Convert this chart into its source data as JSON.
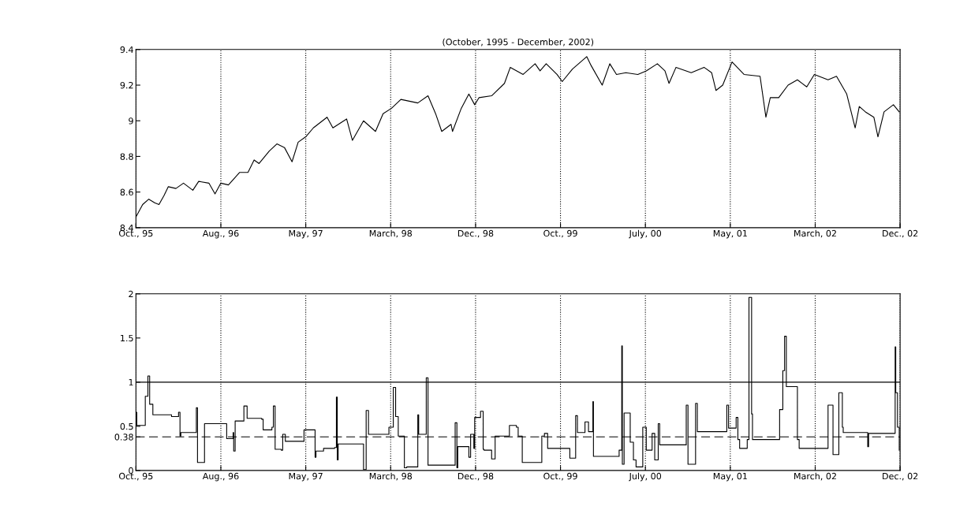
{
  "chart_data": [
    {
      "type": "line",
      "title": "(October, 1995 - December, 2002)",
      "xlim": [
        "1995-10-16",
        "2002-12-17"
      ],
      "ylim": [
        8.4,
        9.4
      ],
      "xticks": [
        {
          "value": "1995-10-16",
          "label": "Oct., 95"
        },
        {
          "value": "1996-08-02",
          "label": "Aug., 96"
        },
        {
          "value": "1997-05-20",
          "label": "May, 97"
        },
        {
          "value": "1998-03-07",
          "label": "March, 98"
        },
        {
          "value": "1998-12-23",
          "label": "Dec., 98"
        },
        {
          "value": "1999-10-10",
          "label": "Oct., 99"
        },
        {
          "value": "2000-07-27",
          "label": "July, 00"
        },
        {
          "value": "2001-05-14",
          "label": "May, 01"
        },
        {
          "value": "2002-03-01",
          "label": "March, 02"
        },
        {
          "value": "2002-12-17",
          "label": "Dec., 02"
        }
      ],
      "yticks": [
        8.4,
        8.6,
        8.8,
        9,
        9.2,
        9.4
      ],
      "grid": "x",
      "series": [
        {
          "color": "#000000",
          "x": [
            "1995-10-16",
            "1995-11-08",
            "1995-11-29",
            "1995-12-19",
            "1996-01-03",
            "1996-01-20",
            "1996-02-04",
            "1996-03-01",
            "1996-03-27",
            "1996-04-28",
            "1996-05-18",
            "1996-06-22",
            "1996-07-13",
            "1996-08-02",
            "1996-08-28",
            "1996-10-05",
            "1996-11-03",
            "1996-11-24",
            "1996-12-11",
            "1997-01-15",
            "1997-02-10",
            "1997-03-08",
            "1997-04-03",
            "1997-04-24",
            "1997-05-20",
            "1997-06-15",
            "1997-08-01",
            "1997-08-21",
            "1997-10-07",
            "1997-10-27",
            "1997-12-04",
            "1998-01-14",
            "1998-02-09",
            "1998-03-10",
            "1998-04-11",
            "1998-06-08",
            "1998-07-13",
            "1998-08-08",
            "1998-08-29",
            "1998-09-30",
            "1998-10-05",
            "1998-11-04",
            "1998-11-30",
            "1998-12-20",
            "1999-01-04",
            "1999-02-16",
            "1999-04-01",
            "1999-04-21",
            "1999-06-04",
            "1999-07-15",
            "1999-08-01",
            "1999-08-22",
            "1999-09-28",
            "1999-10-16",
            "1999-11-20",
            "2000-01-08",
            "2000-01-23",
            "2000-03-01",
            "2000-03-27",
            "2000-04-19",
            "2000-05-21",
            "2000-07-01",
            "2000-07-30",
            "2000-09-06",
            "2000-10-02",
            "2000-10-16",
            "2000-11-09",
            "2000-12-31",
            "2001-02-13",
            "2001-03-11",
            "2001-03-26",
            "2001-04-18",
            "2001-05-20",
            "2001-06-30",
            "2001-08-24",
            "2001-09-13",
            "2001-09-28",
            "2001-10-27",
            "2001-11-28",
            "2001-12-30",
            "2002-01-31",
            "2002-02-26",
            "2002-04-14",
            "2002-05-13",
            "2002-06-17",
            "2002-07-16",
            "2002-07-30",
            "2002-08-20",
            "2002-09-18",
            "2002-10-02",
            "2002-10-23",
            "2002-11-24",
            "2002-12-14"
          ],
          "values": [
            8.46,
            8.53,
            8.56,
            8.54,
            8.53,
            8.58,
            8.63,
            8.62,
            8.65,
            8.61,
            8.66,
            8.65,
            8.59,
            8.65,
            8.64,
            8.71,
            8.71,
            8.78,
            8.76,
            8.83,
            8.87,
            8.85,
            8.77,
            8.88,
            8.91,
            8.96,
            9.02,
            8.96,
            9.01,
            8.89,
            9.0,
            8.94,
            9.04,
            9.07,
            9.12,
            9.1,
            9.14,
            9.04,
            8.94,
            8.98,
            8.94,
            9.07,
            9.15,
            9.09,
            9.13,
            9.14,
            9.21,
            9.3,
            9.26,
            9.32,
            9.28,
            9.32,
            9.26,
            9.22,
            9.29,
            9.36,
            9.31,
            9.2,
            9.32,
            9.26,
            9.27,
            9.26,
            9.28,
            9.32,
            9.28,
            9.21,
            9.3,
            9.27,
            9.3,
            9.27,
            9.17,
            9.2,
            9.33,
            9.26,
            9.25,
            9.02,
            9.13,
            9.13,
            9.2,
            9.23,
            9.19,
            9.26,
            9.23,
            9.25,
            9.15,
            8.96,
            9.08,
            9.05,
            9.02,
            8.91,
            9.05,
            9.09,
            9.05
          ]
        }
      ]
    },
    {
      "type": "step",
      "xlim": [
        "1995-10-16",
        "2002-12-17"
      ],
      "ylim": [
        0,
        2
      ],
      "xticks": [
        {
          "value": "1995-10-16",
          "label": "Oct., 95"
        },
        {
          "value": "1996-08-02",
          "label": "Aug., 96"
        },
        {
          "value": "1997-05-20",
          "label": "May, 97"
        },
        {
          "value": "1998-03-07",
          "label": "March, 98"
        },
        {
          "value": "1998-12-23",
          "label": "Dec., 98"
        },
        {
          "value": "1999-10-10",
          "label": "Oct., 99"
        },
        {
          "value": "2000-07-27",
          "label": "July, 00"
        },
        {
          "value": "2001-05-14",
          "label": "May, 01"
        },
        {
          "value": "2002-03-01",
          "label": "March, 02"
        },
        {
          "value": "2002-12-17",
          "label": "Dec., 02"
        }
      ],
      "yticks": [
        0,
        0.38,
        0.5,
        1,
        1.5,
        2
      ],
      "grid": "x",
      "ref_lines": [
        {
          "axis": "y",
          "value": 1,
          "line_style": "solid",
          "color": "#000000"
        },
        {
          "axis": "y",
          "value": 0.38,
          "line_style": "dashed",
          "color": "#000000"
        }
      ],
      "series": [
        {
          "color": "#000000",
          "x": [
            "1995-10-16",
            "1995-10-19",
            "1995-11-14",
            "1995-11-17",
            "1995-11-26",
            "1995-12-02",
            "1995-12-13",
            "1996-02-15",
            "1996-03-10",
            "1996-03-15",
            "1996-03-18",
            "1996-05-09",
            "1996-05-10",
            "1996-05-14",
            "1996-06-04",
            "1996-06-07",
            "1996-08-19",
            "1996-08-22",
            "1996-09-13",
            "1996-09-15",
            "1996-09-20",
            "1996-10-20",
            "1996-10-31",
            "1996-12-20",
            "1996-12-25",
            "1997-01-24",
            "1997-01-29",
            "1997-02-04",
            "1997-02-25",
            "1997-03-02",
            "1997-03-11",
            "1997-05-05",
            "1997-05-14",
            "1997-06-04",
            "1997-06-21",
            "1997-06-24",
            "1997-07-20",
            "1997-08-27",
            "1997-09-02",
            "1997-09-05",
            "1997-09-08",
            "1997-11-28",
            "1997-12-04",
            "1997-12-13",
            "1997-12-21",
            "1998-02-20",
            "1998-03-01",
            "1998-03-16",
            "1998-03-24",
            "1998-04-02",
            "1998-04-17",
            "1998-04-23",
            "1998-05-01",
            "1998-06-02",
            "1998-06-08",
            "1998-06-11",
            "1998-07-04",
            "1998-07-07",
            "1998-07-13",
            "1998-10-08",
            "1998-10-14",
            "1998-10-20",
            "1998-10-23",
            "1998-11-09",
            "1998-11-30",
            "1998-12-06",
            "1998-12-17",
            "1998-12-20",
            "1999-01-09",
            "1999-01-18",
            "1999-01-21",
            "1999-02-16",
            "1999-02-28",
            "1999-04-15",
            "1999-04-18",
            "1999-05-12",
            "1999-05-18",
            "1999-06-01",
            "1999-07-26",
            "1999-08-07",
            "1999-08-16",
            "1999-08-27",
            "1999-10-30",
            "1999-11-11",
            "1999-11-26",
            "1999-12-01",
            "1999-12-07",
            "2000-01-02",
            "2000-01-14",
            "2000-01-29",
            "2000-01-31",
            "2000-04-28",
            "2000-05-07",
            "2000-05-09",
            "2000-05-15",
            "2000-06-05",
            "2000-06-16",
            "2000-06-25",
            "2000-07-18",
            "2000-07-30",
            "2000-08-19",
            "2000-08-28",
            "2000-09-09",
            "2000-09-14",
            "2000-11-23",
            "2000-12-14",
            "2000-12-20",
            "2001-01-15",
            "2001-01-21",
            "2001-04-27",
            "2001-05-02",
            "2001-05-08",
            "2001-06-03",
            "2001-06-09",
            "2001-06-15",
            "2001-07-11",
            "2001-07-17",
            "2001-07-26",
            "2001-07-29",
            "2001-10-27",
            "2001-10-30",
            "2001-11-10",
            "2001-11-16",
            "2001-11-22",
            "2001-12-18",
            "2001-12-30",
            "2002-01-05",
            "2002-04-05",
            "2002-04-14",
            "2002-05-01",
            "2002-05-21",
            "2002-06-02",
            "2002-06-05",
            "2002-08-26",
            "2002-08-28",
            "2002-08-31",
            "2002-11-15",
            "2002-11-30",
            "2002-12-02",
            "2002-12-08",
            "2002-12-14"
          ],
          "values": [
            0.66,
            0.51,
            0.51,
            0.84,
            1.07,
            0.75,
            0.63,
            0.61,
            0.66,
            0.39,
            0.43,
            0.43,
            0.71,
            0.09,
            0.09,
            0.53,
            0.53,
            0.36,
            0.43,
            0.22,
            0.56,
            0.73,
            0.59,
            0.58,
            0.46,
            0.49,
            0.73,
            0.24,
            0.23,
            0.41,
            0.33,
            0.33,
            0.46,
            0.46,
            0.15,
            0.22,
            0.25,
            0.26,
            0.83,
            0.12,
            0.3,
            0.3,
            0.01,
            0.68,
            0.41,
            0.41,
            0.49,
            0.94,
            0.61,
            0.39,
            0.39,
            0.03,
            0.04,
            0.04,
            0.63,
            0.41,
            0.41,
            1.05,
            0.06,
            0.06,
            0.54,
            0.03,
            0.27,
            0.27,
            0.15,
            0.41,
            0.25,
            0.6,
            0.67,
            0.24,
            0.23,
            0.13,
            0.39,
            0.39,
            0.51,
            0.49,
            0.39,
            0.09,
            0.09,
            0.39,
            0.42,
            0.25,
            0.25,
            0.14,
            0.14,
            0.62,
            0.43,
            0.55,
            0.44,
            0.78,
            0.16,
            0.23,
            1.41,
            0.07,
            0.65,
            0.32,
            0.12,
            0.04,
            0.49,
            0.23,
            0.42,
            0.12,
            0.53,
            0.29,
            0.29,
            0.74,
            0.07,
            0.76,
            0.44,
            0.44,
            0.74,
            0.48,
            0.6,
            0.35,
            0.25,
            0.35,
            1.96,
            0.64,
            0.35,
            0.35,
            0.69,
            1.13,
            1.52,
            0.95,
            0.95,
            0.35,
            0.25,
            0.25,
            0.74,
            0.18,
            0.88,
            0.49,
            0.43,
            0.43,
            0.27,
            0.42,
            0.42,
            1.4,
            0.88,
            0.49,
            0.23
          ]
        }
      ]
    }
  ]
}
